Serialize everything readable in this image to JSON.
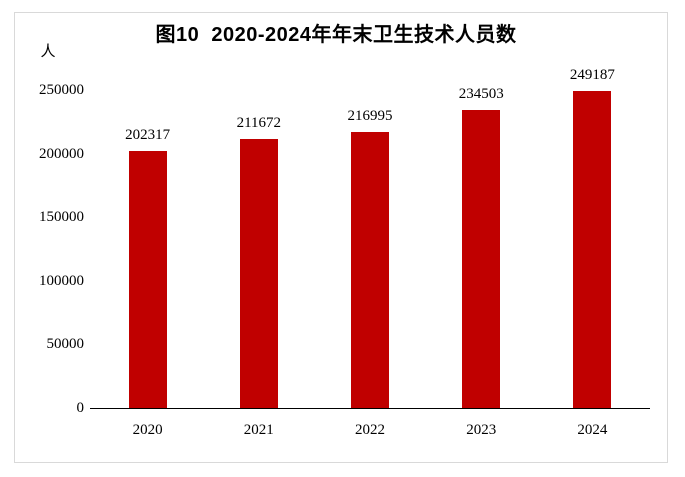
{
  "chart_data": {
    "type": "bar",
    "title": "图10  2020-2024年年末卫生技术人员数",
    "unit_label": "人",
    "categories": [
      "2020",
      "2021",
      "2022",
      "2023",
      "2024"
    ],
    "values": [
      202317,
      211672,
      216995,
      234503,
      249187
    ],
    "value_labels": [
      "202317",
      "211672",
      "216995",
      "234503",
      "249187"
    ],
    "xlabel": "",
    "ylabel": "人",
    "ylim": [
      0,
      250000
    ],
    "yticks": [
      0,
      50000,
      100000,
      150000,
      200000,
      250000
    ],
    "ytick_labels": [
      "0",
      "50000",
      "100000",
      "150000",
      "200000",
      "250000"
    ],
    "bar_color": "#C00000",
    "axis_color": "#000000",
    "border_color": "#d9d9d9",
    "grid": false,
    "legend_position": "none",
    "data_labels": true
  }
}
